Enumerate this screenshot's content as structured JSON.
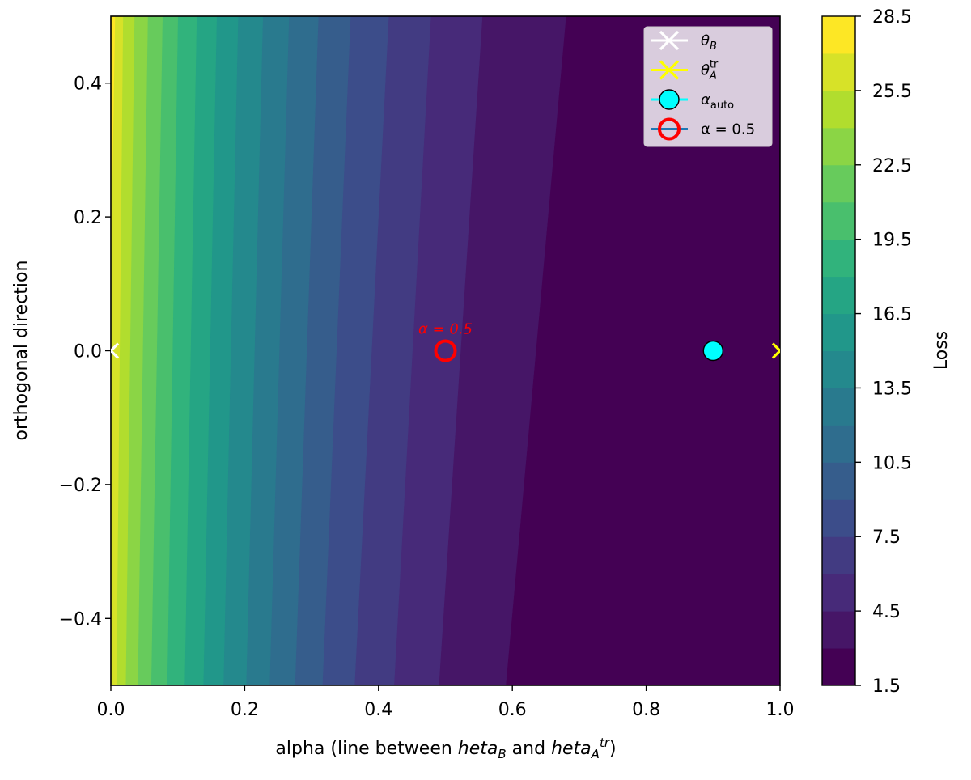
{
  "chart_data": {
    "type": "heatmap",
    "subtype": "filled-contour",
    "xlabel": "alpha (line between $\\theta_B$ and $\\theta_A^{tr}$)",
    "xlabel_parts": [
      {
        "text": "alpha (line between ",
        "style": "normal"
      },
      {
        "text": "heta",
        "style": "italic"
      },
      {
        "text": "B",
        "style": "italic-sub"
      },
      {
        "text": " and ",
        "style": "normal"
      },
      {
        "text": "heta",
        "style": "italic"
      },
      {
        "text": "A",
        "style": "italic-sub"
      },
      {
        "text": "tr",
        "style": "italic-sup"
      },
      {
        "text": ")",
        "style": "normal"
      }
    ],
    "ylabel": "orthogonal direction",
    "xlim": [
      0.0,
      1.0
    ],
    "ylim": [
      -0.5,
      0.5
    ],
    "x_ticks": [
      0.0,
      0.2,
      0.4,
      0.6,
      0.8,
      1.0
    ],
    "x_tick_labels": [
      "0.0",
      "0.2",
      "0.4",
      "0.6",
      "0.8",
      "1.0"
    ],
    "y_ticks": [
      -0.4,
      -0.2,
      0.0,
      0.2,
      0.4
    ],
    "y_tick_labels": [
      "−0.4",
      "−0.2",
      "0.0",
      "0.2",
      "0.4"
    ],
    "colorbar": {
      "label": "Loss",
      "min": 1.5,
      "max": 28.5,
      "step": 1.5,
      "ticks": [
        1.5,
        4.5,
        7.5,
        10.5,
        13.5,
        16.5,
        19.5,
        22.5,
        25.5,
        28.5
      ],
      "tick_labels": [
        "1.5",
        "4.5",
        "7.5",
        "10.5",
        "13.5",
        "16.5",
        "19.5",
        "22.5",
        "25.5",
        "28.5"
      ],
      "colormap": "viridis"
    },
    "contour_boundaries": [
      {
        "level": 3.0,
        "x_at_top": 0.68,
        "x_at_bottom": 0.59
      },
      {
        "level": 4.5,
        "x_at_top": 0.555,
        "x_at_bottom": 0.49
      },
      {
        "level": 6.0,
        "x_at_top": 0.478,
        "x_at_bottom": 0.423
      },
      {
        "level": 7.5,
        "x_at_top": 0.415,
        "x_at_bottom": 0.364
      },
      {
        "level": 9.0,
        "x_at_top": 0.358,
        "x_at_bottom": 0.316
      },
      {
        "level": 10.5,
        "x_at_top": 0.31,
        "x_at_bottom": 0.275
      },
      {
        "level": 12.0,
        "x_at_top": 0.266,
        "x_at_bottom": 0.237
      },
      {
        "level": 13.5,
        "x_at_top": 0.227,
        "x_at_bottom": 0.202
      },
      {
        "level": 15.0,
        "x_at_top": 0.19,
        "x_at_bottom": 0.168
      },
      {
        "level": 16.5,
        "x_at_top": 0.158,
        "x_at_bottom": 0.138
      },
      {
        "level": 18.0,
        "x_at_top": 0.128,
        "x_at_bottom": 0.11
      },
      {
        "level": 19.5,
        "x_at_top": 0.1,
        "x_at_bottom": 0.084
      },
      {
        "level": 21.0,
        "x_at_top": 0.077,
        "x_at_bottom": 0.06
      },
      {
        "level": 22.5,
        "x_at_top": 0.055,
        "x_at_bottom": 0.04
      },
      {
        "level": 24.0,
        "x_at_top": 0.035,
        "x_at_bottom": 0.022
      },
      {
        "level": 25.5,
        "x_at_top": 0.018,
        "x_at_bottom": 0.008
      },
      {
        "level": 27.0,
        "x_at_top": 0.006,
        "x_at_bottom": -0.01
      }
    ],
    "markers": [
      {
        "name": "theta_B",
        "x": 0.0,
        "y": 0.0,
        "marker": "x",
        "color": "#ffffff"
      },
      {
        "name": "theta_A_tr",
        "x": 1.0,
        "y": 0.0,
        "marker": "x",
        "color": "#ffff00"
      },
      {
        "name": "alpha_auto",
        "x": 0.9,
        "y": 0.0,
        "marker": "circle-filled",
        "color": "#00ffff",
        "edge": "#000000"
      },
      {
        "name": "alpha_half",
        "x": 0.5,
        "y": 0.0,
        "marker": "circle-open",
        "color": "#ff0000",
        "annotation": "α = 0.5"
      }
    ],
    "legend": {
      "placement": "top-right",
      "entries": [
        {
          "label": "θ",
          "sub": "B",
          "sup": "",
          "line_color": "#ffffff",
          "marker": "x",
          "marker_color": "#ffffff"
        },
        {
          "label": "θ",
          "sub": "A",
          "sup": "tr",
          "line_color": "#ffff00",
          "marker": "x",
          "marker_color": "#ffff00"
        },
        {
          "label": "α",
          "sub": "auto",
          "sup": "",
          "line_color": "#00ffff",
          "marker": "circle-filled",
          "marker_color": "#00ffff"
        },
        {
          "label": "α = 0.5",
          "sub": "",
          "sup": "",
          "line_color": "#1f77b4",
          "marker": "circle-open",
          "marker_color": "#ff0000"
        }
      ]
    },
    "annotation": "α = 0.5"
  }
}
